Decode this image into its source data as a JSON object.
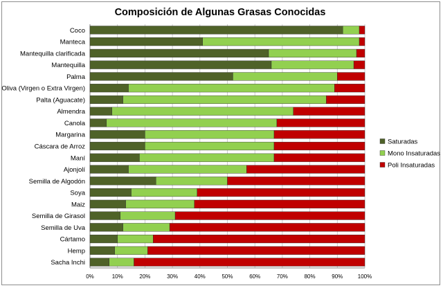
{
  "chart_data": {
    "type": "bar",
    "orientation": "horizontal",
    "stacked": "percent",
    "title": "Composición de Algunas Grasas Conocidas",
    "xlabel": "",
    "ylabel": "",
    "xlim": [
      0,
      100
    ],
    "x_ticks": [
      "0%",
      "10%",
      "20%",
      "30%",
      "40%",
      "50%",
      "60%",
      "70%",
      "80%",
      "90%",
      "100%"
    ],
    "grid": true,
    "legend_position": "right",
    "categories": [
      "Coco",
      "Manteca",
      "Mantequilla clarificada",
      "Mantequilla",
      "Palma",
      "Oliva (Virgen o Extra Virgen)",
      "Palta (Aguacate)",
      "Almendra",
      "Canola",
      "Margarina",
      "Cáscara de Arroz",
      "Maní",
      "Ajonjolí",
      "Semilla de Algodón",
      "Soya",
      "Maiz",
      "Semilla de Girasol",
      "Semilla de Uva",
      "Cártamo",
      "Hemp",
      "Sacha Inchi"
    ],
    "series": [
      {
        "name": "Saturadas",
        "color": "#4f6228",
        "values": [
          92,
          41,
          65,
          66,
          52,
          14,
          12,
          8,
          6,
          20,
          20,
          18,
          14,
          24,
          15,
          13,
          11,
          12,
          10,
          9,
          7
        ]
      },
      {
        "name": "Mono Insaturadas",
        "color": "#92d050",
        "values": [
          6,
          57,
          32,
          30,
          38,
          75,
          74,
          66,
          62,
          47,
          47,
          49,
          43,
          26,
          24,
          25,
          20,
          17,
          13,
          12,
          9
        ]
      },
      {
        "name": "Poli Insaturadas",
        "color": "#c00000",
        "values": [
          2,
          2,
          3,
          4,
          10,
          11,
          14,
          26,
          32,
          33,
          33,
          33,
          43,
          50,
          61,
          62,
          69,
          71,
          77,
          79,
          84
        ]
      }
    ]
  }
}
